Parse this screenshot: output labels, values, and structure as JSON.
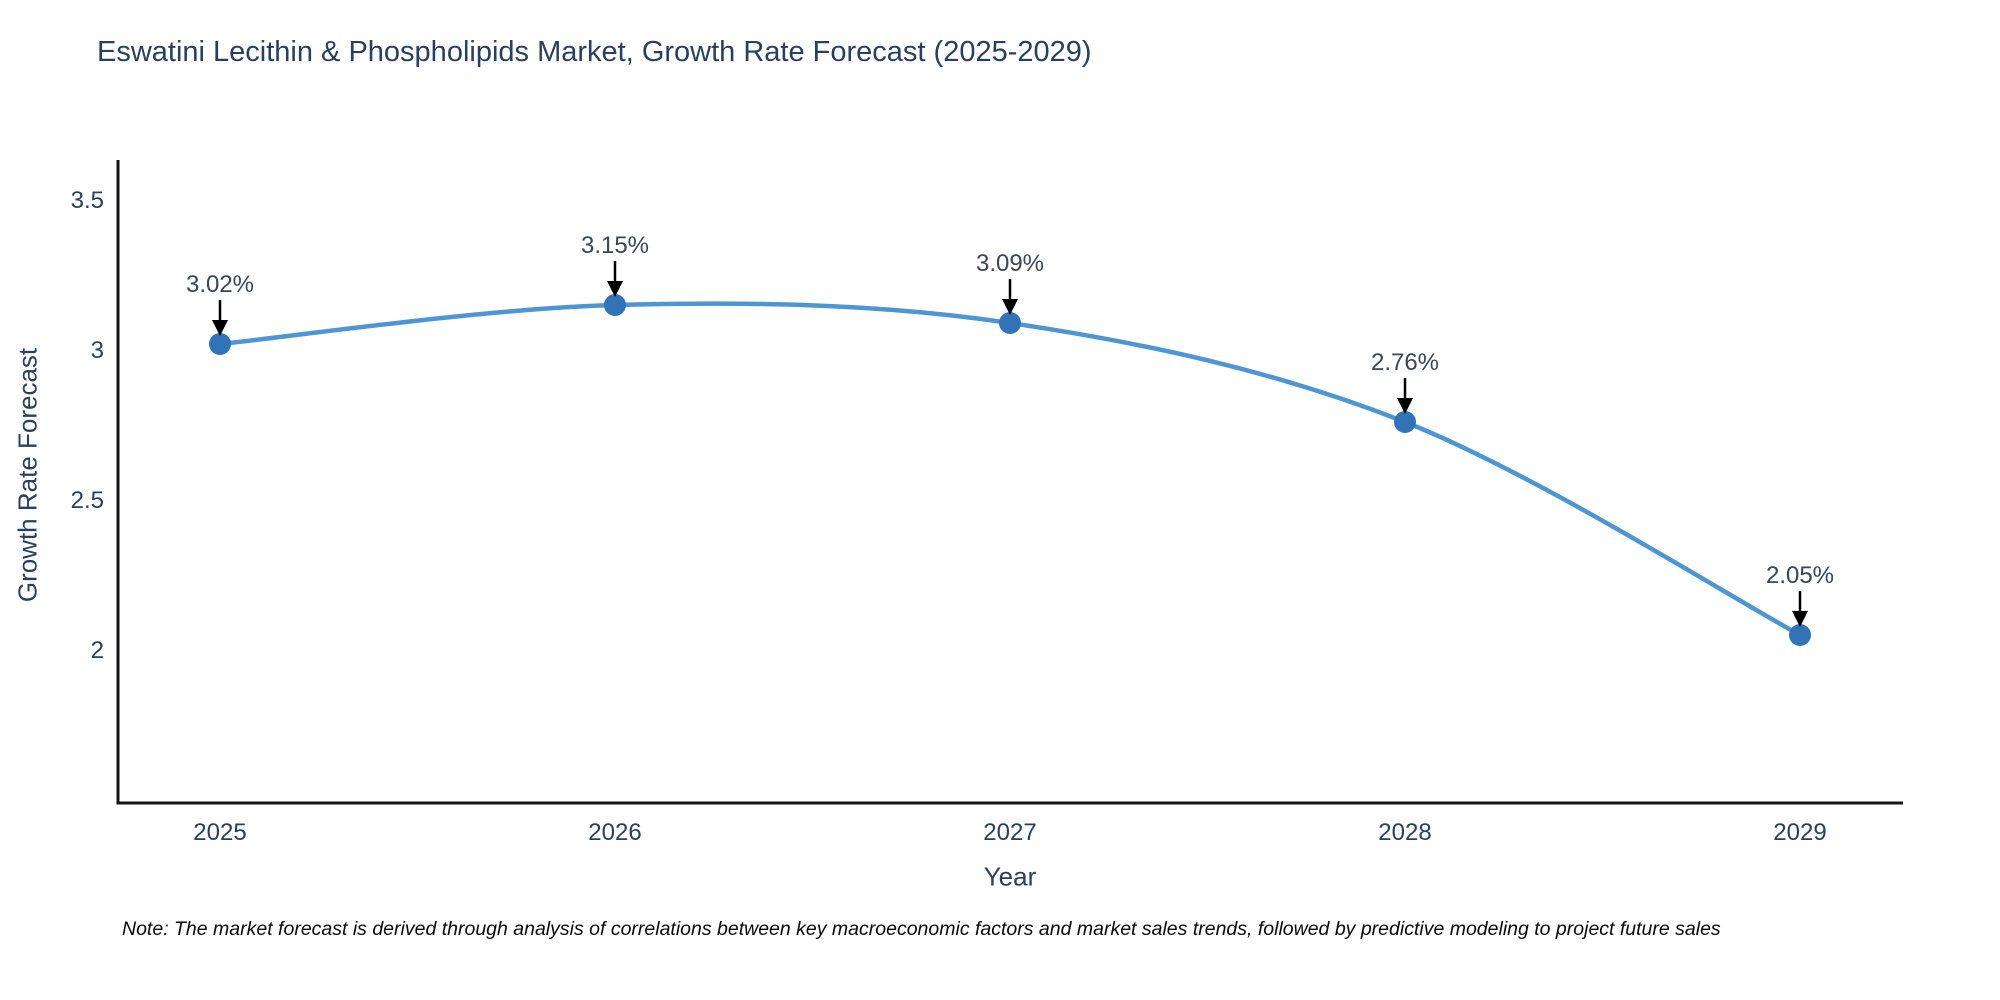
{
  "header": {
    "title": "Eswatini Lecithin & Phospholipids Market, Growth Rate Forecast (2025-2029)"
  },
  "footer": {
    "note": "Note: The market forecast is derived through analysis of correlations between key macroeconomic factors and market sales trends, followed by predictive modeling to project future sales"
  },
  "chart_data": {
    "type": "line",
    "title": "Eswatini Lecithin & Phospholipids Market, Growth Rate Forecast (2025-2029)",
    "xlabel": "Year",
    "ylabel": "Growth Rate Forecast",
    "x": [
      2025,
      2026,
      2027,
      2028,
      2029
    ],
    "series": [
      {
        "name": "Growth Rate Forecast",
        "values": [
          3.02,
          3.15,
          3.09,
          2.76,
          2.05
        ]
      }
    ],
    "point_labels": [
      "3.02%",
      "3.15%",
      "3.09%",
      "2.76%",
      "2.05%"
    ],
    "yticks": [
      2,
      2.5,
      3,
      3.5
    ],
    "ytick_labels": [
      "2",
      "2.5",
      "3",
      "3.5"
    ],
    "ylim": [
      1.49,
      3.63
    ],
    "grid": false,
    "legend": "none",
    "colors": {
      "line": "#4e96d1",
      "marker": "#3273b8",
      "axis": "#161616",
      "tick_text": "#2a3f5f",
      "annotation_text": "#3a4556",
      "arrow": "#000000"
    }
  }
}
